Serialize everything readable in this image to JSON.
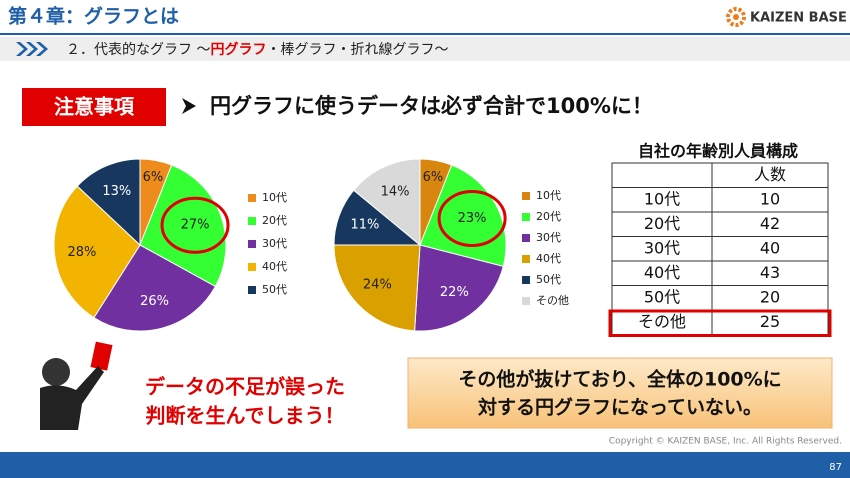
{
  "header": {
    "title": "第４章：グラフとは",
    "logo": "KAIZEN BASE"
  },
  "subtitle": {
    "prefix": "２．代表的なグラフ ～",
    "highlight": "円グラフ",
    "suffix": "・棒グラフ・折れ線グラフ～"
  },
  "notice": {
    "tag": "注意事項",
    "text": "円グラフに使うデータは必ず合計で100%に！"
  },
  "chart_data": [
    {
      "type": "pie",
      "categories": [
        "10代",
        "20代",
        "30代",
        "40代",
        "50代"
      ],
      "values": [
        6,
        27,
        26,
        28,
        13
      ],
      "value_labels": [
        "6%",
        "27%",
        "26%",
        "28%",
        "13%"
      ],
      "colors": [
        "#ed8b1c",
        "#33ff33",
        "#7030a0",
        "#f2b400",
        "#17375e"
      ],
      "legend": "right",
      "highlight": 1
    },
    {
      "type": "pie",
      "categories": [
        "10代",
        "20代",
        "30代",
        "40代",
        "50代",
        "その他"
      ],
      "values": [
        6,
        23,
        22,
        24,
        11,
        14
      ],
      "value_labels": [
        "6%",
        "23%",
        "22%",
        "24%",
        "11%",
        "14%"
      ],
      "colors": [
        "#d9860f",
        "#33ff33",
        "#7030a0",
        "#d9a000",
        "#17375e",
        "#d9d9d9"
      ],
      "legend": "right",
      "highlight": 1
    }
  ],
  "table": {
    "title": "自社の年齢別人員構成",
    "header": [
      "人数"
    ],
    "rows": [
      [
        "10代",
        10
      ],
      [
        "20代",
        42
      ],
      [
        "30代",
        40
      ],
      [
        "40代",
        43
      ],
      [
        "50代",
        20
      ],
      [
        "その他",
        25
      ]
    ],
    "highlight": 5
  },
  "warning": {
    "lines": [
      "データの不足が誤った",
      "判断を生んでしまう！"
    ]
  },
  "callout": {
    "lines": [
      "その他が抜けており、全体の100%に",
      "対する円グラフになっていない。"
    ]
  },
  "footer": {
    "copyright": "Copyright ©  KAIZEN BASE, Inc.  All Rights Reserved.",
    "page": "87"
  }
}
